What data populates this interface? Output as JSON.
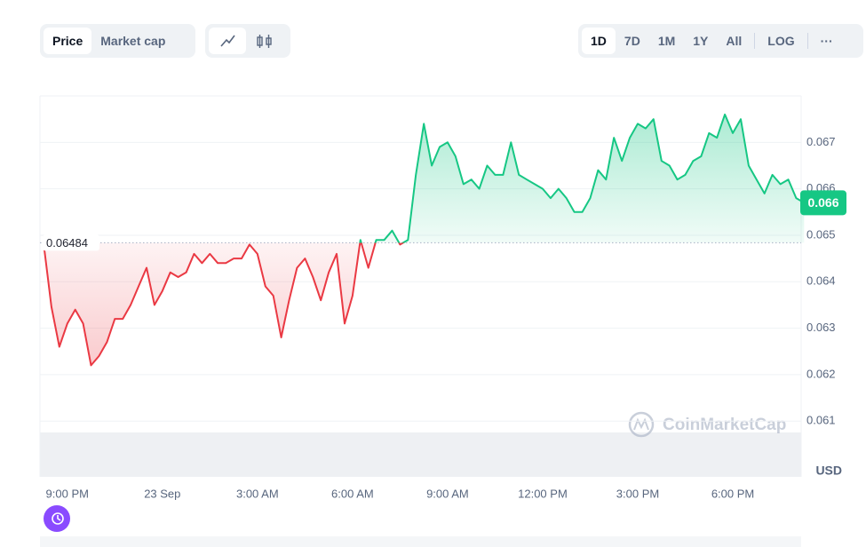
{
  "controls": {
    "metric_tabs": [
      "Price",
      "Market cap"
    ],
    "range_tabs": [
      "1D",
      "7D",
      "1M",
      "1Y",
      "All"
    ],
    "scale_toggle": "LOG",
    "more": "···"
  },
  "watermark": "CoinMarketCap",
  "chart_data": {
    "type": "line",
    "categories": [
      null,
      null,
      null,
      "9:00 PM",
      null,
      null,
      null,
      null,
      null,
      null,
      null,
      null,
      null,
      null,
      null,
      "23 Sep",
      null,
      null,
      null,
      null,
      null,
      null,
      null,
      null,
      null,
      null,
      null,
      "3:00 AM",
      null,
      null,
      null,
      null,
      null,
      null,
      null,
      null,
      null,
      null,
      null,
      "6:00 AM",
      null,
      null,
      null,
      null,
      null,
      null,
      null,
      null,
      null,
      null,
      null,
      "9:00 AM",
      null,
      null,
      null,
      null,
      null,
      null,
      null,
      null,
      null,
      null,
      null,
      "12:00 PM",
      null,
      null,
      null,
      null,
      null,
      null,
      null,
      null,
      null,
      null,
      null,
      "3:00 PM",
      null,
      null,
      null,
      null,
      null,
      null,
      null,
      null,
      null,
      null,
      null,
      "6:00 PM",
      null,
      null,
      null,
      null,
      null,
      null,
      null,
      null,
      null
    ],
    "values": [
      0.06484,
      0.06346,
      0.0626,
      0.0631,
      0.0634,
      0.0631,
      0.0622,
      0.0624,
      0.0627,
      0.0632,
      0.0632,
      0.0635,
      0.0639,
      0.0643,
      0.0635,
      0.0638,
      0.0642,
      0.0641,
      0.0642,
      0.0646,
      0.0644,
      0.0646,
      0.0644,
      0.0644,
      0.0645,
      0.0645,
      0.0648,
      0.0646,
      0.0639,
      0.0637,
      0.0628,
      0.0636,
      0.0643,
      0.0645,
      0.0641,
      0.0636,
      0.0642,
      0.0646,
      0.0631,
      0.0637,
      0.0649,
      0.0643,
      0.0649,
      0.0649,
      0.0651,
      0.0648,
      0.0649,
      0.0663,
      0.0674,
      0.0665,
      0.0669,
      0.067,
      0.0667,
      0.0661,
      0.0662,
      0.066,
      0.0665,
      0.0663,
      0.0663,
      0.067,
      0.0663,
      0.0662,
      0.0661,
      0.066,
      0.0658,
      0.066,
      0.0658,
      0.0655,
      0.0655,
      0.0658,
      0.0664,
      0.0662,
      0.0671,
      0.0666,
      0.0671,
      0.0674,
      0.0673,
      0.0675,
      0.0666,
      0.0665,
      0.0662,
      0.0663,
      0.0666,
      0.0667,
      0.0672,
      0.0671,
      0.0676,
      0.0672,
      0.0675,
      0.0665,
      0.0662,
      0.0659,
      0.0663,
      0.0661,
      0.0662,
      0.0658,
      0.0657
    ],
    "baseline": 0.06484,
    "current_label": "0.066",
    "color_up": "#16c784",
    "color_down": "#ea3943",
    "ylim": [
      0.0598,
      0.068
    ],
    "yticks": [
      0.061,
      0.062,
      0.063,
      0.064,
      0.065,
      0.066,
      0.067
    ],
    "y_unit": "USD",
    "grid": true
  }
}
